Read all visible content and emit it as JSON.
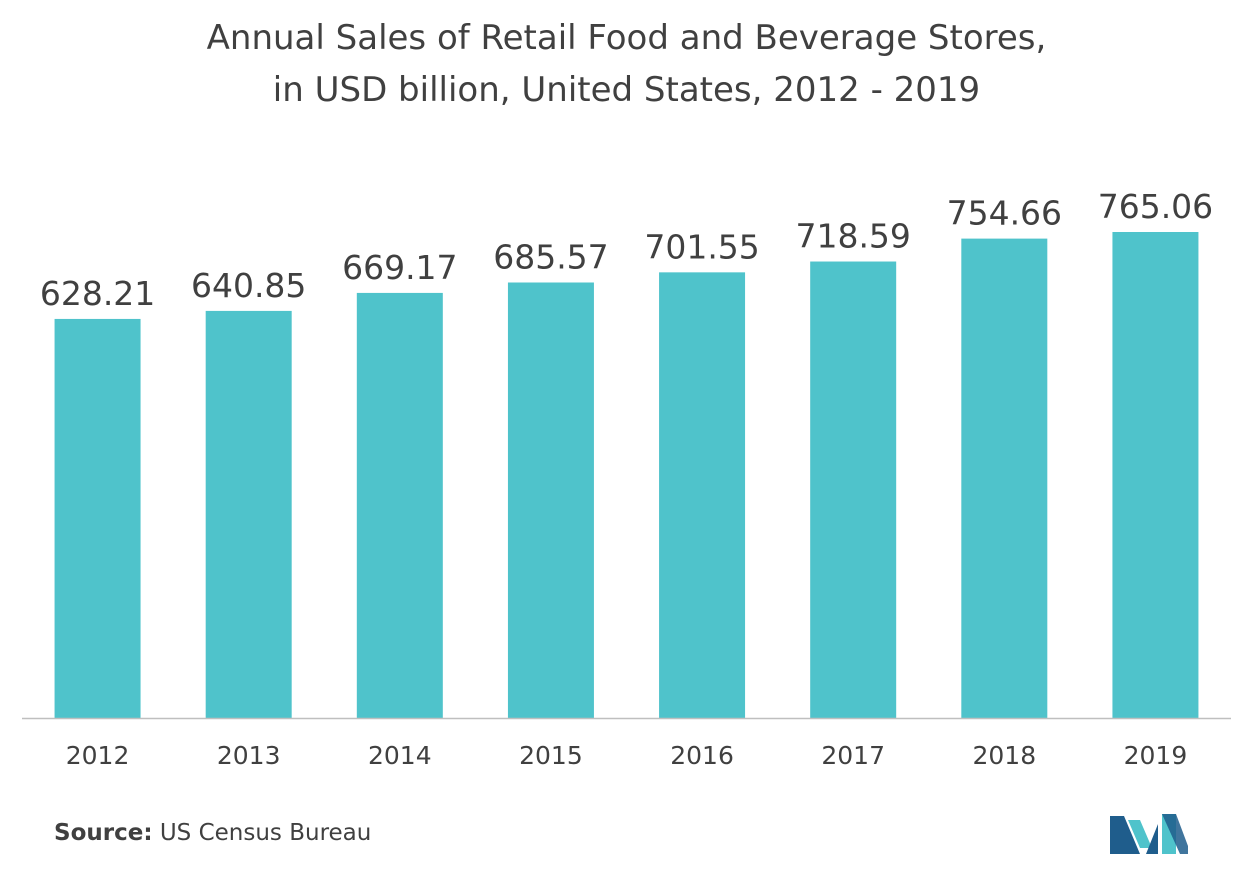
{
  "chart_data": {
    "type": "bar",
    "title_line1": "Annual Sales of Retail Food and Beverage Stores,",
    "title_line2": "in USD billion, United States, 2012 - 2019",
    "categories": [
      "2012",
      "2013",
      "2014",
      "2015",
      "2016",
      "2017",
      "2018",
      "2019"
    ],
    "values": [
      628.21,
      640.85,
      669.17,
      685.57,
      701.55,
      718.59,
      754.66,
      765.06
    ],
    "data_labels": [
      "628.21",
      "640.85",
      "669.17",
      "685.57",
      "701.55",
      "718.59",
      "754.66",
      "765.06"
    ],
    "xlabel": "",
    "ylabel": "",
    "ylim": [
      0,
      765.06
    ],
    "grid": false,
    "legend": "none",
    "bar_color": "#4FC3CB",
    "axis_color": "#BFBFBF",
    "text_color": "#404040"
  },
  "footer": {
    "source_label": "Source:",
    "source_text": " US Census Bureau",
    "logo_icon": "mordor-intelligence-logo-icon"
  }
}
